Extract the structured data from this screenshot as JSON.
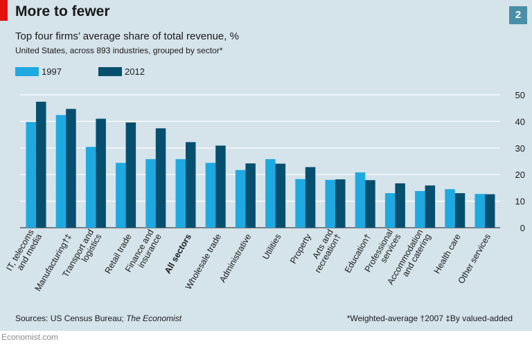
{
  "title": "More to fewer",
  "badge": "2",
  "subtitle": "Top four firms’ average share of total revenue, %",
  "subtitle2": "United States, across 893 industries, grouped by sector*",
  "source_prefix": "Sources: US Census Bureau; ",
  "source_italic": "The Economist",
  "notes": "*Weighted-average   †2007   ‡By valued-added",
  "footer": "Economist.com",
  "colors": {
    "series_1997": "#1ea9e1",
    "series_2012": "#074f6e",
    "background": "#d5e3ea",
    "accent": "#e3120b",
    "badge": "#4a8fa8"
  },
  "chart_data": {
    "type": "bar",
    "title": "Top four firms’ average share of total revenue, %",
    "xlabel": "",
    "ylabel": "",
    "ylim": [
      0,
      50
    ],
    "yticks": [
      0,
      10,
      20,
      30,
      40,
      50
    ],
    "grid": true,
    "legend": "top-left",
    "categories": [
      "IT, telecoms and media",
      "Manufacturing†‡",
      "Transport and logistics",
      "Retail trade",
      "Finance and insurance",
      "All sectors",
      "Wholesale trade",
      "Administrative",
      "Utilities",
      "Property",
      "Arts and recreation†",
      "Education†",
      "Professional services",
      "Accommodation and catering",
      "Health care",
      "Other services"
    ],
    "category_lines": [
      [
        "IT, telecoms",
        "and media"
      ],
      [
        "Manufacturing†‡"
      ],
      [
        "Transport and",
        "logistics"
      ],
      [
        "Retail trade"
      ],
      [
        "Finance and",
        "insurance"
      ],
      [
        "All sectors"
      ],
      [
        "Wholesale trade"
      ],
      [
        "Administrative"
      ],
      [
        "Utilities"
      ],
      [
        "Property"
      ],
      [
        "Arts and",
        "recreation†"
      ],
      [
        "Education†"
      ],
      [
        "Professional",
        "services"
      ],
      [
        "Accommodation",
        "and catering"
      ],
      [
        "Health care"
      ],
      [
        "Other services"
      ]
    ],
    "bold_category": "All sectors",
    "series": [
      {
        "name": "1997",
        "values": [
          39.8,
          42.4,
          30.4,
          24.4,
          25.8,
          25.8,
          24.4,
          21.7,
          25.8,
          18.3,
          18.0,
          20.8,
          13.0,
          13.8,
          14.5,
          12.7
        ]
      },
      {
        "name": "2012",
        "values": [
          47.4,
          44.7,
          41.0,
          39.6,
          37.4,
          32.2,
          30.9,
          24.2,
          24.1,
          22.8,
          18.2,
          17.9,
          16.7,
          15.9,
          13.0,
          12.6
        ]
      }
    ]
  }
}
